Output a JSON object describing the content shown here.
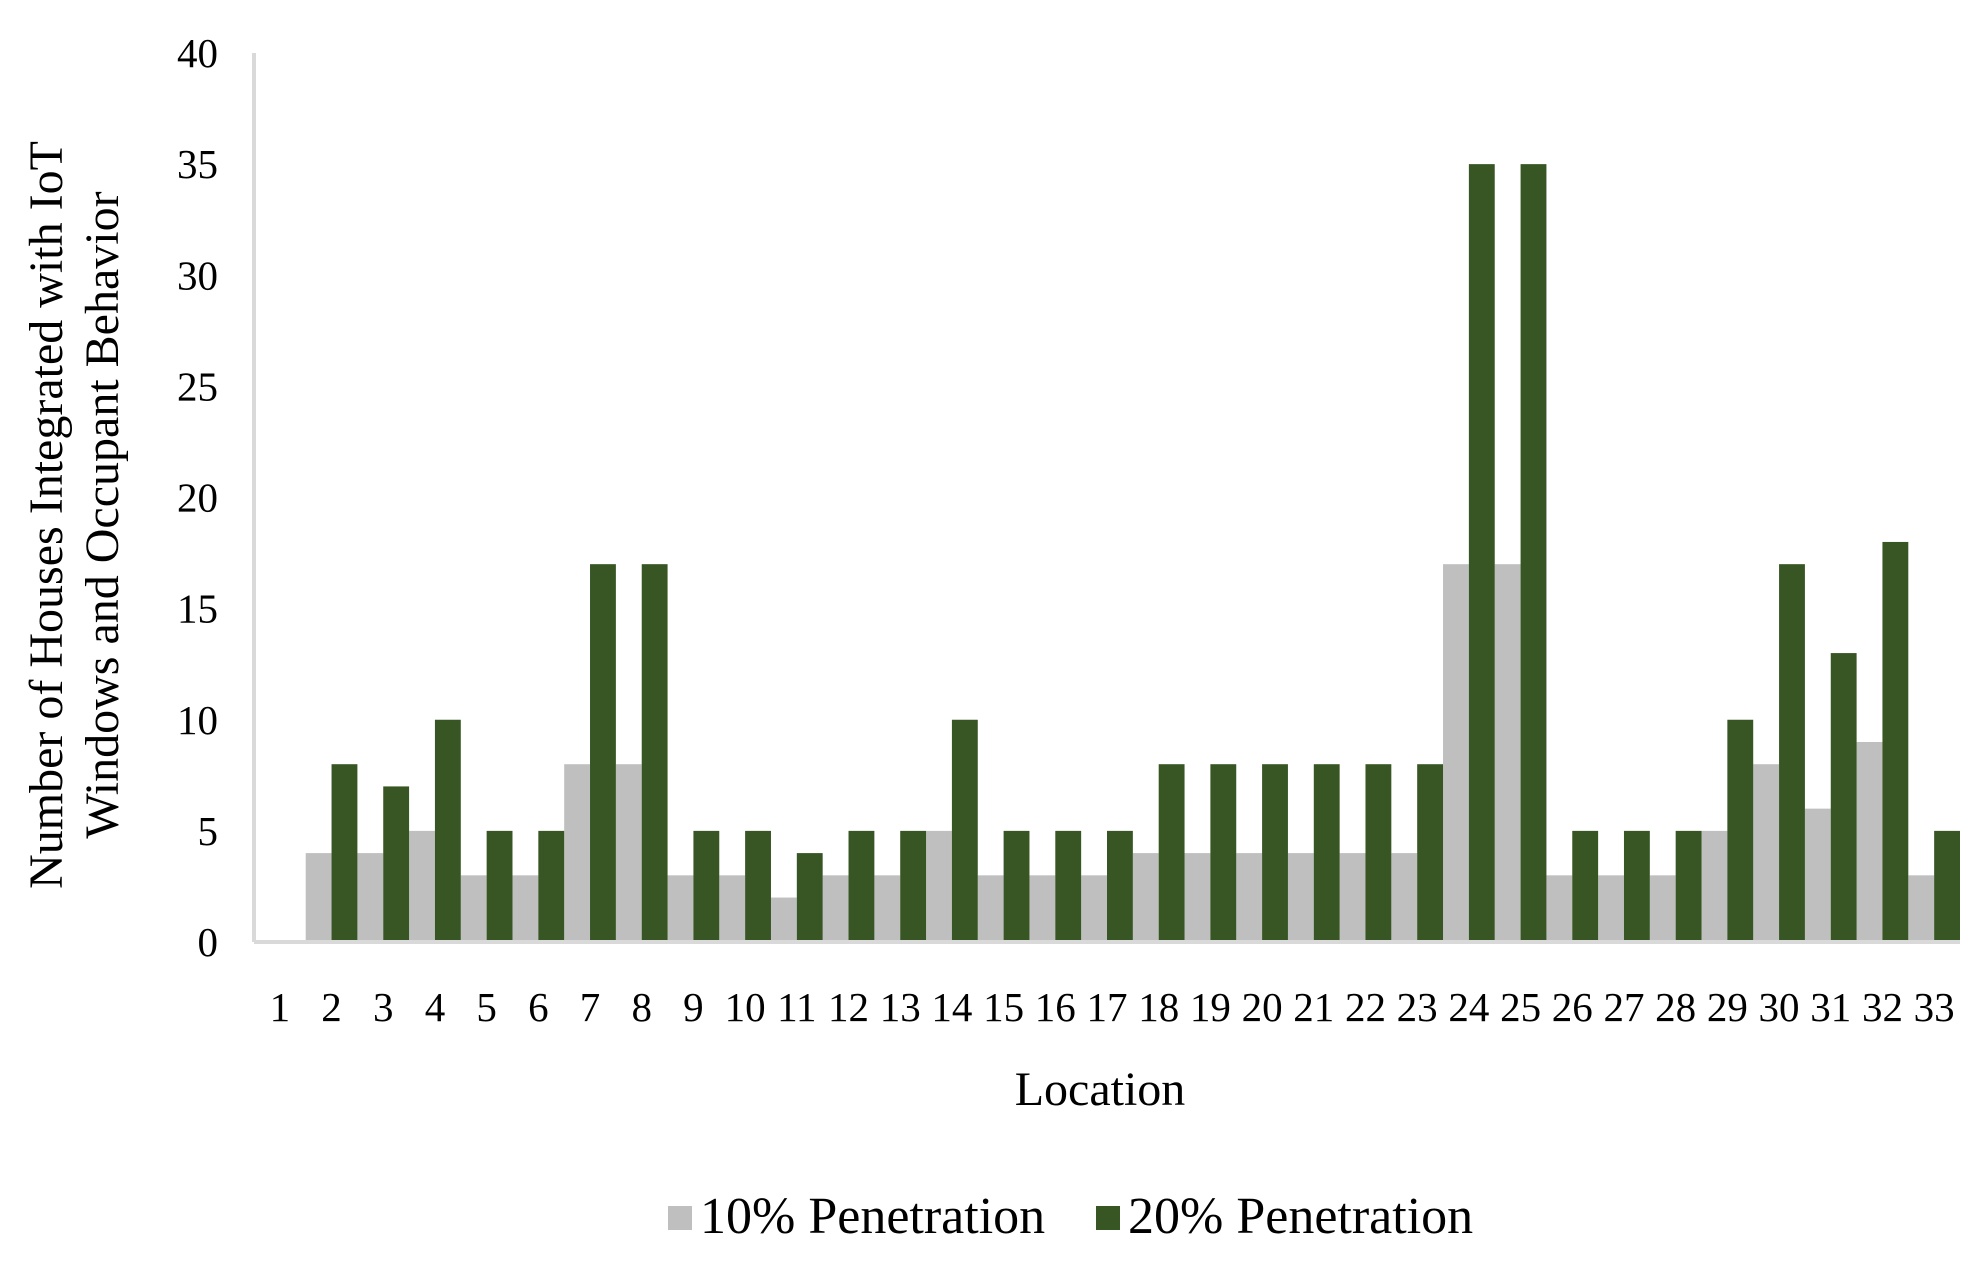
{
  "chart_data": {
    "type": "bar",
    "title": "",
    "xlabel": "Location",
    "ylabel_lines": [
      "Number of Houses Integrated with IoT",
      "Windows and Occupant Behavior"
    ],
    "ylim": [
      0,
      40
    ],
    "yticks": [
      0,
      5,
      10,
      15,
      20,
      25,
      30,
      35,
      40
    ],
    "grid": false,
    "legend_position": "bottom",
    "categories": [
      "1",
      "2",
      "3",
      "4",
      "5",
      "6",
      "7",
      "8",
      "9",
      "10",
      "11",
      "12",
      "13",
      "14",
      "15",
      "16",
      "17",
      "18",
      "19",
      "20",
      "21",
      "22",
      "23",
      "24",
      "25",
      "26",
      "27",
      "28",
      "29",
      "30",
      "31",
      "32",
      "33"
    ],
    "series": [
      {
        "name": "10% Penetration",
        "color": "#bfbfbf",
        "values": [
          0,
          4,
          4,
          5,
          3,
          3,
          8,
          8,
          3,
          3,
          2,
          3,
          3,
          5,
          3,
          3,
          3,
          4,
          4,
          4,
          4,
          4,
          4,
          17,
          17,
          3,
          3,
          3,
          5,
          8,
          6,
          9,
          3
        ]
      },
      {
        "name": "20% Penetration",
        "color": "#375623",
        "values": [
          0,
          8,
          7,
          10,
          5,
          5,
          17,
          17,
          5,
          5,
          4,
          5,
          5,
          10,
          5,
          5,
          5,
          8,
          8,
          8,
          8,
          8,
          8,
          35,
          35,
          5,
          5,
          5,
          10,
          17,
          13,
          18,
          5
        ]
      }
    ]
  },
  "colors": {
    "axis_line": "#d9d9d9",
    "text": "#000000"
  }
}
